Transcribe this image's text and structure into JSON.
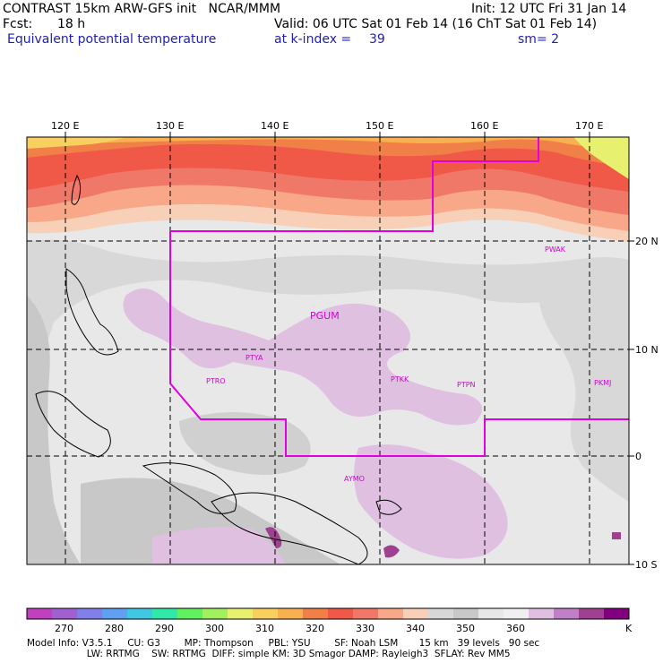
{
  "header": {
    "model_line": "CONTRAST 15km ARW-GFS init   NCAR/MMM",
    "init_line": "Init: 12 UTC Fri 31 Jan 14",
    "fcst_label": "Fcst:",
    "fcst_value": "18 h",
    "valid_line": "Valid: 06 UTC Sat 01 Feb 14 (16 ChT Sat 01 Feb 14)",
    "field_name": "Equivalent potential temperature",
    "level_label": "at k-index =",
    "level_value": "39",
    "smoothing": "sm= 2"
  },
  "map": {
    "lon_labels": [
      "120 E",
      "130 E",
      "140 E",
      "150 E",
      "160 E",
      "170 E"
    ],
    "lat_labels": [
      "20 N",
      "10 N",
      "0",
      "10 S"
    ],
    "stations": [
      "PGUM",
      "PTYA",
      "PTRO",
      "PTKK",
      "PTPN",
      "PKMJ",
      "PWAK",
      "AYMO"
    ],
    "boundary_color": "#e000e0",
    "grid_color": "#000000"
  },
  "colorbar": {
    "labels": [
      "270",
      "280",
      "290",
      "300",
      "310",
      "320",
      "330",
      "340",
      "350",
      "360"
    ],
    "unit": "K",
    "colors": [
      "#c040c0",
      "#a060d0",
      "#8080e8",
      "#5fa0f0",
      "#40c8e0",
      "#30e8a8",
      "#60f060",
      "#a0f060",
      "#e8f070",
      "#f8d060",
      "#f8b050",
      "#f08048",
      "#f05848",
      "#f07868",
      "#f8a888",
      "#f8d0b8",
      "#d8d8d8",
      "#c8c8c8",
      "#e8e8e8",
      "#f0f0f0",
      "#e0c0e0",
      "#c080c8",
      "#a04090",
      "#800080"
    ]
  },
  "footer": {
    "line1": "Model Info: V3.5.1     CU: G3        MP: Thompson     PBL: YSU        SF: Noah LSM       15 km   39 levels   90 sec",
    "line2": "                    LW: RRTMG    SW: RRTMG  DIFF: simple KM: 3D Smagor DAMP: Rayleigh3  SFLAY: Rev MM5"
  }
}
